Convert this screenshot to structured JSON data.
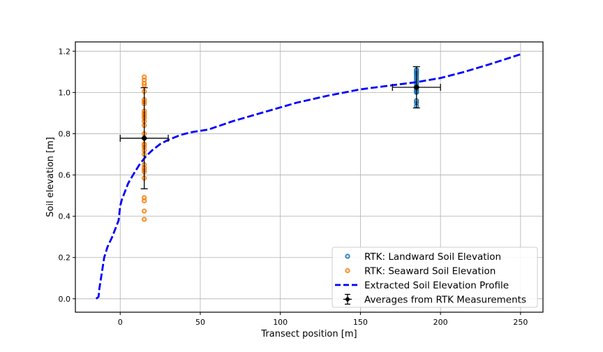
{
  "chart_data": {
    "type": "scatter",
    "xlabel": "Transect position [m]",
    "ylabel": "Soil elevation [m]",
    "xlim": [
      -28,
      264
    ],
    "ylim": [
      -0.065,
      1.245
    ],
    "xticks": [
      0,
      50,
      100,
      150,
      200,
      250
    ],
    "yticks": [
      0.0,
      0.2,
      0.4,
      0.6,
      0.8,
      1.0,
      1.2
    ],
    "ytick_labels": [
      "0.0",
      "0.2",
      "0.4",
      "0.6",
      "0.8",
      "1.0",
      "1.2"
    ],
    "grid": true,
    "legend_position": "bottom-right",
    "series": [
      {
        "name": "RTK: Landward Soil Elevation",
        "kind": "scatter",
        "color": "#1f77b4",
        "x": [
          185,
          185,
          185,
          185,
          185,
          185,
          185,
          185,
          185,
          185,
          185,
          185,
          185,
          185,
          185,
          185,
          185,
          185,
          185,
          185
        ],
        "y": [
          0.935,
          0.95,
          0.96,
          1.0,
          1.005,
          1.01,
          1.015,
          1.02,
          1.025,
          1.03,
          1.04,
          1.05,
          1.06,
          1.07,
          1.08,
          1.09,
          1.095,
          1.1,
          1.105,
          1.11
        ]
      },
      {
        "name": "RTK: Seaward Soil Elevation",
        "kind": "scatter",
        "color": "#ff7f0e",
        "x": [
          15,
          15,
          15,
          15,
          15,
          15,
          15,
          15,
          15,
          15,
          15,
          15,
          15,
          15,
          15,
          15,
          15,
          15,
          15,
          15,
          15,
          15,
          15,
          15,
          15,
          15,
          15,
          15,
          15,
          15,
          15
        ],
        "y": [
          0.385,
          0.425,
          0.475,
          0.49,
          0.585,
          0.615,
          0.625,
          0.635,
          0.65,
          0.7,
          0.72,
          0.735,
          0.745,
          0.75,
          0.78,
          0.8,
          0.84,
          0.86,
          0.875,
          0.885,
          0.895,
          0.9,
          0.91,
          0.945,
          0.955,
          0.965,
          1.005,
          1.035,
          1.045,
          1.06,
          1.075
        ]
      },
      {
        "name": "Extracted Soil Elevation Profile",
        "kind": "line",
        "style": "dashed",
        "color": "#0000ff",
        "x": [
          -15,
          -13.5,
          -13,
          -12,
          -11,
          -10,
          -8,
          -5,
          -2,
          -1,
          0,
          1,
          3,
          5,
          8,
          12,
          16,
          20,
          25,
          30,
          38,
          45,
          55,
          70,
          90,
          110,
          130,
          150,
          170,
          185,
          200,
          215,
          230,
          250
        ],
        "y": [
          0.0,
          0.01,
          0.05,
          0.1,
          0.15,
          0.2,
          0.25,
          0.3,
          0.36,
          0.38,
          0.45,
          0.48,
          0.52,
          0.56,
          0.6,
          0.65,
          0.69,
          0.72,
          0.75,
          0.77,
          0.795,
          0.808,
          0.82,
          0.86,
          0.905,
          0.95,
          0.985,
          1.015,
          1.035,
          1.05,
          1.07,
          1.1,
          1.135,
          1.185
        ]
      },
      {
        "name": "Averages from RTK Measurements",
        "kind": "errorbar",
        "color": "#000000",
        "x": [
          15,
          185
        ],
        "y": [
          0.778,
          1.025
        ],
        "xerr": [
          15,
          15
        ],
        "yerr": [
          0.245,
          0.1
        ]
      }
    ]
  }
}
